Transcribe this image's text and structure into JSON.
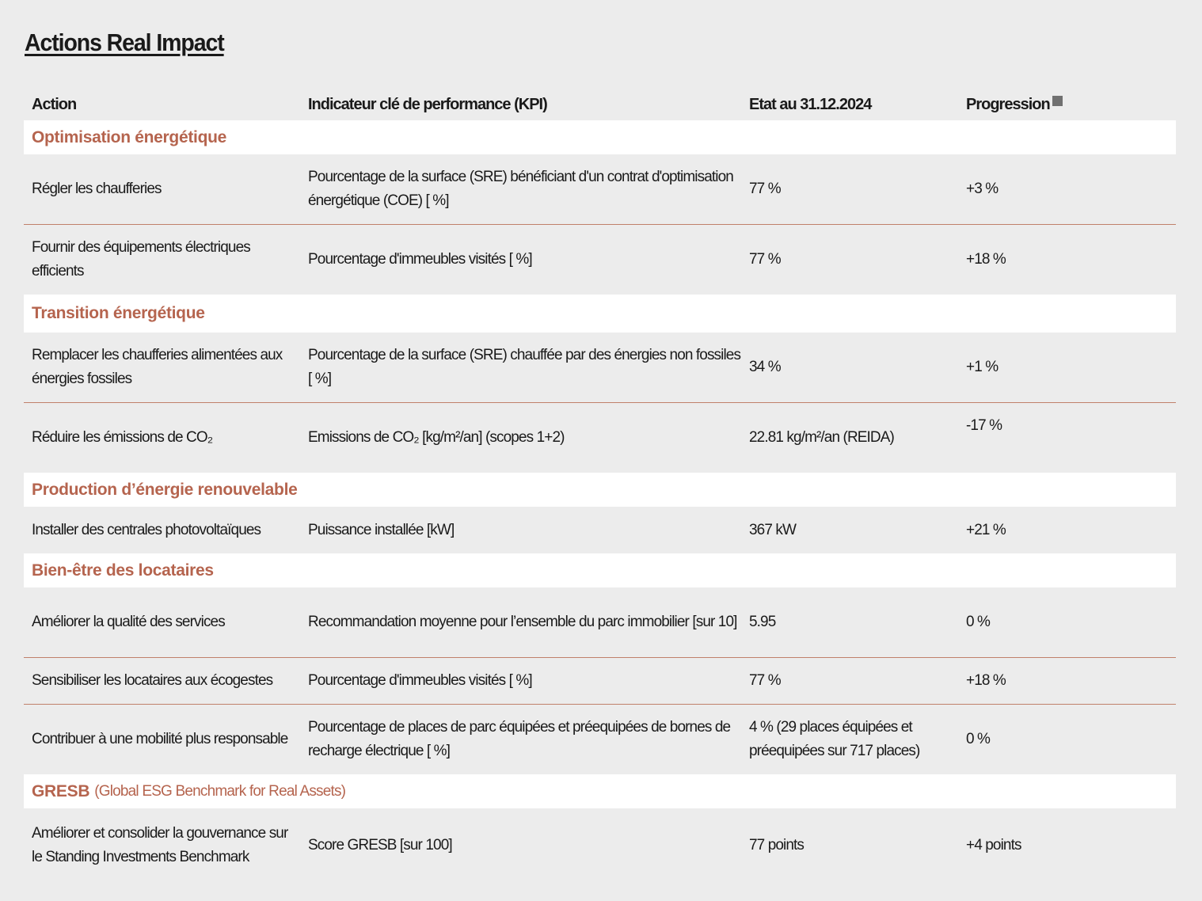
{
  "title": "Actions Real Impact",
  "headers": {
    "action": "Action",
    "kpi": "Indicateur clé de performance (KPI)",
    "state": "Etat au 31.12.2024",
    "progress": "Progression"
  },
  "colors": {
    "section": "#b5644e",
    "divider": "#c0806a",
    "background": "#ececec",
    "legend_square": "#707070"
  },
  "sections": [
    {
      "title": "Optimisation énergétique",
      "rows": [
        {
          "action": "Régler les chaufferies",
          "kpi": "Pourcentage de la surface (SRE) bénéficiant d'un contrat d'optimisation énergétique (COE) [ %]",
          "state": "77 %",
          "progress": "+3 %"
        },
        {
          "action": "Fournir des équipements électriques efficients",
          "kpi": "Pourcentage d'immeubles visités [ %]",
          "state": "77 %",
          "progress": "+18 %"
        }
      ]
    },
    {
      "title": "Transition énergétique",
      "rows": [
        {
          "action": "Remplacer les chaufferies alimentées aux énergies fossiles",
          "kpi": "Pourcentage de la surface (SRE) chauffée par des énergies non fossiles [ %]",
          "state": "34 %",
          "progress": "+1 %"
        },
        {
          "action": "Réduire les émissions de CO₂",
          "kpi": "Emissions de CO₂ [kg/m²/an] (scopes 1+2)",
          "state": "22.81 kg/m²/an (REIDA)",
          "progress": "-17 %"
        }
      ]
    },
    {
      "title": "Production d’énergie renouvelable",
      "rows": [
        {
          "action": "Installer des centrales photovoltaïques",
          "kpi": "Puissance installée [kW]",
          "state": "367 kW",
          "progress": "+21 %"
        }
      ]
    },
    {
      "title": "Bien-être des locataires",
      "rows": [
        {
          "action": "Améliorer la qualité des services",
          "kpi": "Recommandation moyenne pour l’ensemble du parc immobilier [sur 10]",
          "state": "5.95",
          "progress": "0 %"
        },
        {
          "action": "Sensibiliser les locataires aux écogestes",
          "kpi": "Pourcentage d'immeubles visités [ %]",
          "state": "77 %",
          "progress": "+18 %"
        },
        {
          "action": "Contribuer à une mobilité plus responsable",
          "kpi": "Pourcentage de places de parc équipées et préequipées de bornes de recharge électrique [ %]",
          "state": "4 % (29 places équipées et préequipées sur 717 places)",
          "progress": "0 %"
        }
      ]
    },
    {
      "title": "GRESB",
      "subtitle": "(Global ESG Benchmark for Real Assets)",
      "rows": [
        {
          "action": "Améliorer et consolider la gouvernance sur le Standing Investments Benchmark",
          "kpi": "Score GRESB [sur 100]",
          "state": "77 points",
          "progress": "+4 points"
        }
      ]
    }
  ]
}
